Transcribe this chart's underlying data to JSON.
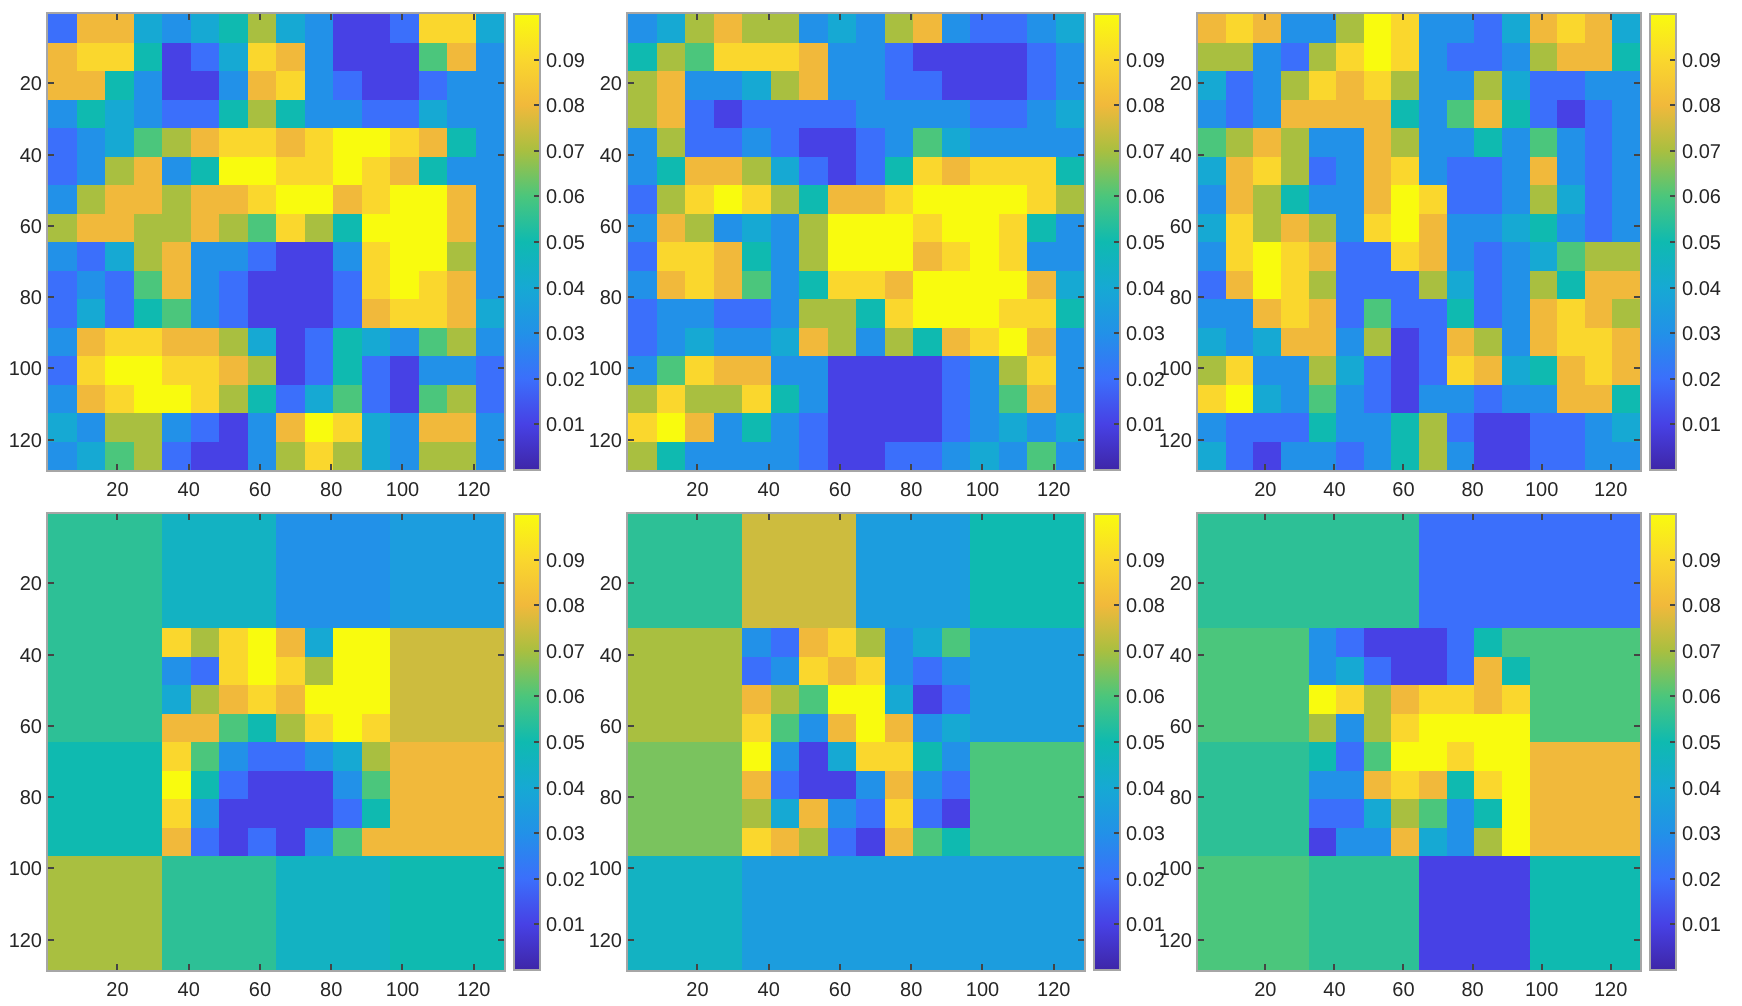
{
  "chart_data": [
    {
      "type": "heatmap",
      "clim": [
        0,
        0.1
      ],
      "cticks": [
        0.01,
        0.02,
        0.03,
        0.04,
        0.05,
        0.06,
        0.07,
        0.08,
        0.09
      ],
      "xlim": [
        0.5,
        128.5
      ],
      "ylim": [
        128.5,
        0.5
      ],
      "xticks": [
        20,
        40,
        60,
        80,
        100,
        120
      ],
      "yticks": [
        20,
        40,
        60,
        80,
        100,
        120
      ],
      "cells": [
        [
          0.02,
          0.08,
          0.08,
          0.04,
          0.03,
          0.04,
          0.05,
          0.07,
          0.04,
          0.03,
          0.01,
          0.01,
          0.02,
          0.09,
          0.09,
          0.04
        ],
        [
          0.08,
          0.09,
          0.09,
          0.05,
          0.01,
          0.02,
          0.04,
          0.09,
          0.08,
          0.03,
          0.01,
          0.01,
          0.01,
          0.06,
          0.08,
          0.03
        ],
        [
          0.08,
          0.08,
          0.05,
          0.03,
          0.01,
          0.01,
          0.03,
          0.08,
          0.09,
          0.03,
          0.02,
          0.01,
          0.01,
          0.02,
          0.03,
          0.03
        ],
        [
          0.03,
          0.05,
          0.04,
          0.03,
          0.02,
          0.02,
          0.05,
          0.07,
          0.05,
          0.03,
          0.03,
          0.02,
          0.02,
          0.04,
          0.03,
          0.03
        ],
        [
          0.02,
          0.03,
          0.04,
          0.06,
          0.07,
          0.08,
          0.09,
          0.09,
          0.08,
          0.09,
          0.1,
          0.1,
          0.09,
          0.08,
          0.05,
          0.03
        ],
        [
          0.02,
          0.03,
          0.07,
          0.08,
          0.03,
          0.05,
          0.1,
          0.1,
          0.09,
          0.09,
          0.1,
          0.09,
          0.08,
          0.05,
          0.03,
          0.03
        ],
        [
          0.03,
          0.07,
          0.08,
          0.08,
          0.07,
          0.08,
          0.08,
          0.09,
          0.1,
          0.1,
          0.08,
          0.09,
          0.1,
          0.1,
          0.08,
          0.03
        ],
        [
          0.07,
          0.08,
          0.08,
          0.07,
          0.07,
          0.08,
          0.07,
          0.06,
          0.09,
          0.07,
          0.05,
          0.1,
          0.1,
          0.1,
          0.08,
          0.03
        ],
        [
          0.03,
          0.02,
          0.04,
          0.07,
          0.08,
          0.03,
          0.03,
          0.02,
          0.01,
          0.01,
          0.03,
          0.09,
          0.1,
          0.1,
          0.07,
          0.03
        ],
        [
          0.02,
          0.03,
          0.02,
          0.06,
          0.08,
          0.03,
          0.02,
          0.01,
          0.01,
          0.01,
          0.02,
          0.09,
          0.1,
          0.09,
          0.08,
          0.03
        ],
        [
          0.02,
          0.04,
          0.02,
          0.05,
          0.06,
          0.03,
          0.02,
          0.01,
          0.01,
          0.01,
          0.02,
          0.08,
          0.09,
          0.09,
          0.08,
          0.04
        ],
        [
          0.03,
          0.08,
          0.09,
          0.09,
          0.08,
          0.08,
          0.07,
          0.04,
          0.01,
          0.02,
          0.05,
          0.04,
          0.03,
          0.06,
          0.07,
          0.03
        ],
        [
          0.02,
          0.09,
          0.1,
          0.1,
          0.09,
          0.09,
          0.08,
          0.07,
          0.01,
          0.02,
          0.05,
          0.02,
          0.01,
          0.03,
          0.03,
          0.02
        ],
        [
          0.03,
          0.08,
          0.09,
          0.1,
          0.1,
          0.09,
          0.07,
          0.05,
          0.02,
          0.04,
          0.06,
          0.02,
          0.01,
          0.06,
          0.07,
          0.02
        ],
        [
          0.04,
          0.03,
          0.07,
          0.07,
          0.03,
          0.02,
          0.01,
          0.03,
          0.08,
          0.1,
          0.09,
          0.04,
          0.03,
          0.08,
          0.08,
          0.03
        ],
        [
          0.03,
          0.04,
          0.06,
          0.07,
          0.02,
          0.01,
          0.01,
          0.03,
          0.07,
          0.09,
          0.07,
          0.04,
          0.03,
          0.07,
          0.07,
          0.03
        ]
      ]
    },
    {
      "type": "heatmap",
      "clim": [
        0,
        0.1
      ],
      "cticks": [
        0.01,
        0.02,
        0.03,
        0.04,
        0.05,
        0.06,
        0.07,
        0.08,
        0.09
      ],
      "xlim": [
        0.5,
        128.5
      ],
      "ylim": [
        128.5,
        0.5
      ],
      "xticks": [
        20,
        40,
        60,
        80,
        100,
        120
      ],
      "yticks": [
        20,
        40,
        60,
        80,
        100,
        120
      ],
      "cells": [
        [
          0.03,
          0.04,
          0.07,
          0.08,
          0.07,
          0.07,
          0.03,
          0.04,
          0.03,
          0.07,
          0.08,
          0.03,
          0.02,
          0.02,
          0.03,
          0.04
        ],
        [
          0.05,
          0.07,
          0.06,
          0.09,
          0.09,
          0.09,
          0.08,
          0.03,
          0.03,
          0.02,
          0.01,
          0.01,
          0.01,
          0.01,
          0.02,
          0.03
        ],
        [
          0.07,
          0.08,
          0.03,
          0.03,
          0.04,
          0.07,
          0.08,
          0.03,
          0.03,
          0.02,
          0.02,
          0.01,
          0.01,
          0.01,
          0.02,
          0.03
        ],
        [
          0.07,
          0.08,
          0.02,
          0.01,
          0.02,
          0.02,
          0.02,
          0.02,
          0.03,
          0.03,
          0.03,
          0.03,
          0.02,
          0.02,
          0.03,
          0.04
        ],
        [
          0.03,
          0.07,
          0.02,
          0.02,
          0.03,
          0.02,
          0.01,
          0.01,
          0.02,
          0.03,
          0.06,
          0.04,
          0.03,
          0.03,
          0.03,
          0.03
        ],
        [
          0.03,
          0.05,
          0.08,
          0.08,
          0.07,
          0.04,
          0.02,
          0.01,
          0.02,
          0.05,
          0.09,
          0.08,
          0.09,
          0.09,
          0.09,
          0.05
        ],
        [
          0.02,
          0.07,
          0.09,
          0.1,
          0.09,
          0.07,
          0.05,
          0.08,
          0.08,
          0.09,
          0.1,
          0.1,
          0.1,
          0.1,
          0.09,
          0.07
        ],
        [
          0.03,
          0.08,
          0.07,
          0.03,
          0.04,
          0.03,
          0.07,
          0.1,
          0.1,
          0.1,
          0.09,
          0.1,
          0.1,
          0.09,
          0.05,
          0.03
        ],
        [
          0.02,
          0.09,
          0.09,
          0.08,
          0.05,
          0.03,
          0.07,
          0.1,
          0.1,
          0.1,
          0.08,
          0.09,
          0.1,
          0.09,
          0.03,
          0.03
        ],
        [
          0.03,
          0.08,
          0.09,
          0.08,
          0.06,
          0.03,
          0.05,
          0.09,
          0.09,
          0.08,
          0.1,
          0.1,
          0.1,
          0.1,
          0.08,
          0.04
        ],
        [
          0.02,
          0.03,
          0.03,
          0.02,
          0.02,
          0.03,
          0.07,
          0.07,
          0.05,
          0.09,
          0.1,
          0.1,
          0.1,
          0.09,
          0.09,
          0.05
        ],
        [
          0.02,
          0.03,
          0.04,
          0.03,
          0.03,
          0.04,
          0.08,
          0.07,
          0.03,
          0.07,
          0.05,
          0.08,
          0.09,
          0.1,
          0.08,
          0.03
        ],
        [
          0.03,
          0.06,
          0.09,
          0.08,
          0.08,
          0.03,
          0.03,
          0.01,
          0.01,
          0.01,
          0.01,
          0.02,
          0.03,
          0.07,
          0.09,
          0.03
        ],
        [
          0.07,
          0.09,
          0.07,
          0.07,
          0.09,
          0.05,
          0.03,
          0.01,
          0.01,
          0.01,
          0.01,
          0.02,
          0.03,
          0.06,
          0.08,
          0.03
        ],
        [
          0.09,
          0.1,
          0.08,
          0.03,
          0.05,
          0.03,
          0.02,
          0.01,
          0.01,
          0.01,
          0.01,
          0.02,
          0.03,
          0.04,
          0.03,
          0.04
        ],
        [
          0.07,
          0.05,
          0.03,
          0.03,
          0.03,
          0.03,
          0.02,
          0.01,
          0.01,
          0.02,
          0.02,
          0.03,
          0.04,
          0.03,
          0.06,
          0.03
        ]
      ]
    },
    {
      "type": "heatmap",
      "clim": [
        0,
        0.1
      ],
      "cticks": [
        0.01,
        0.02,
        0.03,
        0.04,
        0.05,
        0.06,
        0.07,
        0.08,
        0.09
      ],
      "xlim": [
        0.5,
        128.5
      ],
      "ylim": [
        128.5,
        0.5
      ],
      "xticks": [
        20,
        40,
        60,
        80,
        100,
        120
      ],
      "yticks": [
        20,
        40,
        60,
        80,
        100,
        120
      ],
      "cells": [
        [
          0.08,
          0.09,
          0.08,
          0.03,
          0.03,
          0.07,
          0.1,
          0.09,
          0.03,
          0.03,
          0.02,
          0.04,
          0.08,
          0.09,
          0.08,
          0.04
        ],
        [
          0.07,
          0.07,
          0.03,
          0.02,
          0.07,
          0.09,
          0.1,
          0.09,
          0.03,
          0.02,
          0.02,
          0.03,
          0.07,
          0.08,
          0.08,
          0.05
        ],
        [
          0.04,
          0.02,
          0.03,
          0.07,
          0.09,
          0.08,
          0.09,
          0.07,
          0.03,
          0.03,
          0.07,
          0.04,
          0.02,
          0.02,
          0.03,
          0.03
        ],
        [
          0.03,
          0.02,
          0.03,
          0.08,
          0.08,
          0.08,
          0.08,
          0.05,
          0.03,
          0.06,
          0.08,
          0.05,
          0.02,
          0.01,
          0.02,
          0.03
        ],
        [
          0.06,
          0.07,
          0.08,
          0.07,
          0.03,
          0.03,
          0.08,
          0.07,
          0.03,
          0.03,
          0.05,
          0.03,
          0.06,
          0.03,
          0.02,
          0.03
        ],
        [
          0.04,
          0.08,
          0.09,
          0.07,
          0.02,
          0.03,
          0.08,
          0.09,
          0.03,
          0.02,
          0.02,
          0.03,
          0.08,
          0.03,
          0.02,
          0.03
        ],
        [
          0.03,
          0.08,
          0.07,
          0.05,
          0.03,
          0.03,
          0.08,
          0.1,
          0.09,
          0.02,
          0.02,
          0.03,
          0.07,
          0.04,
          0.02,
          0.03
        ],
        [
          0.04,
          0.09,
          0.07,
          0.08,
          0.07,
          0.03,
          0.09,
          0.1,
          0.08,
          0.03,
          0.03,
          0.04,
          0.05,
          0.03,
          0.02,
          0.03
        ],
        [
          0.03,
          0.09,
          0.1,
          0.09,
          0.08,
          0.02,
          0.02,
          0.09,
          0.08,
          0.03,
          0.02,
          0.03,
          0.04,
          0.06,
          0.07,
          0.07
        ],
        [
          0.02,
          0.08,
          0.1,
          0.09,
          0.07,
          0.02,
          0.02,
          0.02,
          0.07,
          0.04,
          0.02,
          0.03,
          0.07,
          0.05,
          0.08,
          0.08
        ],
        [
          0.03,
          0.03,
          0.08,
          0.09,
          0.08,
          0.02,
          0.06,
          0.02,
          0.02,
          0.05,
          0.02,
          0.03,
          0.08,
          0.09,
          0.08,
          0.07
        ],
        [
          0.04,
          0.03,
          0.04,
          0.08,
          0.08,
          0.03,
          0.07,
          0.01,
          0.02,
          0.08,
          0.07,
          0.03,
          0.08,
          0.09,
          0.09,
          0.08
        ],
        [
          0.07,
          0.09,
          0.03,
          0.03,
          0.07,
          0.04,
          0.02,
          0.01,
          0.02,
          0.09,
          0.08,
          0.04,
          0.05,
          0.08,
          0.09,
          0.08
        ],
        [
          0.09,
          0.1,
          0.04,
          0.03,
          0.06,
          0.03,
          0.02,
          0.01,
          0.03,
          0.03,
          0.02,
          0.03,
          0.03,
          0.08,
          0.08,
          0.05
        ],
        [
          0.03,
          0.02,
          0.02,
          0.02,
          0.05,
          0.03,
          0.03,
          0.05,
          0.07,
          0.02,
          0.01,
          0.01,
          0.02,
          0.02,
          0.03,
          0.04
        ],
        [
          0.04,
          0.02,
          0.01,
          0.03,
          0.03,
          0.02,
          0.03,
          0.05,
          0.07,
          0.03,
          0.01,
          0.01,
          0.02,
          0.02,
          0.03,
          0.03
        ]
      ]
    },
    {
      "type": "heatmap",
      "clim": [
        0,
        0.1
      ],
      "cticks": [
        0.01,
        0.02,
        0.03,
        0.04,
        0.05,
        0.06,
        0.07,
        0.08,
        0.09
      ],
      "xlim": [
        0.5,
        128.5
      ],
      "ylim": [
        128.5,
        0.5
      ],
      "xticks": [
        20,
        40,
        60,
        80,
        100,
        120
      ],
      "yticks": [
        20,
        40,
        60,
        80,
        100,
        120
      ],
      "cells": [
        [
          0.055,
          0.055,
          0.055,
          0.055,
          0.045,
          0.045,
          0.045,
          0.045,
          0.03,
          0.03,
          0.03,
          0.03,
          0.035,
          0.035,
          0.035,
          0.035
        ],
        [
          0.055,
          0.055,
          0.055,
          0.055,
          0.045,
          0.045,
          0.045,
          0.045,
          0.03,
          0.03,
          0.03,
          0.03,
          0.035,
          0.035,
          0.035,
          0.035
        ],
        [
          0.055,
          0.055,
          0.055,
          0.055,
          0.045,
          0.045,
          0.045,
          0.045,
          0.03,
          0.03,
          0.03,
          0.03,
          0.035,
          0.035,
          0.035,
          0.035
        ],
        [
          0.055,
          0.055,
          0.055,
          0.055,
          0.045,
          0.045,
          0.045,
          0.045,
          0.03,
          0.03,
          0.03,
          0.03,
          0.035,
          0.035,
          0.035,
          0.035
        ],
        [
          0.055,
          0.055,
          0.055,
          0.055,
          0.09,
          0.07,
          0.09,
          0.1,
          0.08,
          0.04,
          0.1,
          0.1,
          0.075,
          0.075,
          0.075,
          0.075
        ],
        [
          0.055,
          0.055,
          0.055,
          0.055,
          0.03,
          0.02,
          0.09,
          0.1,
          0.09,
          0.07,
          0.1,
          0.1,
          0.075,
          0.075,
          0.075,
          0.075
        ],
        [
          0.055,
          0.055,
          0.055,
          0.055,
          0.04,
          0.07,
          0.08,
          0.09,
          0.08,
          0.1,
          0.1,
          0.1,
          0.075,
          0.075,
          0.075,
          0.075
        ],
        [
          0.055,
          0.055,
          0.055,
          0.055,
          0.08,
          0.08,
          0.06,
          0.05,
          0.07,
          0.09,
          0.1,
          0.09,
          0.075,
          0.075,
          0.075,
          0.075
        ],
        [
          0.05,
          0.05,
          0.05,
          0.05,
          0.09,
          0.06,
          0.03,
          0.02,
          0.02,
          0.03,
          0.04,
          0.07,
          0.08,
          0.08,
          0.08,
          0.08
        ],
        [
          0.05,
          0.05,
          0.05,
          0.05,
          0.1,
          0.05,
          0.02,
          0.01,
          0.01,
          0.01,
          0.03,
          0.06,
          0.08,
          0.08,
          0.08,
          0.08
        ],
        [
          0.05,
          0.05,
          0.05,
          0.05,
          0.09,
          0.03,
          0.01,
          0.01,
          0.01,
          0.01,
          0.02,
          0.05,
          0.08,
          0.08,
          0.08,
          0.08
        ],
        [
          0.05,
          0.05,
          0.05,
          0.05,
          0.08,
          0.02,
          0.01,
          0.02,
          0.01,
          0.03,
          0.06,
          0.08,
          0.08,
          0.08,
          0.08,
          0.08
        ],
        [
          0.07,
          0.07,
          0.07,
          0.07,
          0.055,
          0.055,
          0.055,
          0.055,
          0.045,
          0.045,
          0.045,
          0.045,
          0.05,
          0.05,
          0.05,
          0.05
        ],
        [
          0.07,
          0.07,
          0.07,
          0.07,
          0.055,
          0.055,
          0.055,
          0.055,
          0.045,
          0.045,
          0.045,
          0.045,
          0.05,
          0.05,
          0.05,
          0.05
        ],
        [
          0.07,
          0.07,
          0.07,
          0.07,
          0.055,
          0.055,
          0.055,
          0.055,
          0.045,
          0.045,
          0.045,
          0.045,
          0.05,
          0.05,
          0.05,
          0.05
        ],
        [
          0.07,
          0.07,
          0.07,
          0.07,
          0.055,
          0.055,
          0.055,
          0.055,
          0.045,
          0.045,
          0.045,
          0.045,
          0.05,
          0.05,
          0.05,
          0.05
        ]
      ]
    },
    {
      "type": "heatmap",
      "clim": [
        0,
        0.1
      ],
      "cticks": [
        0.01,
        0.02,
        0.03,
        0.04,
        0.05,
        0.06,
        0.07,
        0.08,
        0.09
      ],
      "xlim": [
        0.5,
        128.5
      ],
      "ylim": [
        128.5,
        0.5
      ],
      "xticks": [
        20,
        40,
        60,
        80,
        100,
        120
      ],
      "yticks": [
        20,
        40,
        60,
        80,
        100,
        120
      ],
      "cells": [
        [
          0.055,
          0.055,
          0.055,
          0.055,
          0.075,
          0.075,
          0.075,
          0.075,
          0.035,
          0.035,
          0.035,
          0.035,
          0.05,
          0.05,
          0.05,
          0.05
        ],
        [
          0.055,
          0.055,
          0.055,
          0.055,
          0.075,
          0.075,
          0.075,
          0.075,
          0.035,
          0.035,
          0.035,
          0.035,
          0.05,
          0.05,
          0.05,
          0.05
        ],
        [
          0.055,
          0.055,
          0.055,
          0.055,
          0.075,
          0.075,
          0.075,
          0.075,
          0.035,
          0.035,
          0.035,
          0.035,
          0.05,
          0.05,
          0.05,
          0.05
        ],
        [
          0.055,
          0.055,
          0.055,
          0.055,
          0.075,
          0.075,
          0.075,
          0.075,
          0.035,
          0.035,
          0.035,
          0.035,
          0.05,
          0.05,
          0.05,
          0.05
        ],
        [
          0.07,
          0.07,
          0.07,
          0.07,
          0.03,
          0.02,
          0.08,
          0.09,
          0.07,
          0.03,
          0.04,
          0.06,
          0.035,
          0.035,
          0.035,
          0.035
        ],
        [
          0.07,
          0.07,
          0.07,
          0.07,
          0.02,
          0.03,
          0.09,
          0.08,
          0.09,
          0.03,
          0.02,
          0.03,
          0.035,
          0.035,
          0.035,
          0.035
        ],
        [
          0.07,
          0.07,
          0.07,
          0.07,
          0.08,
          0.07,
          0.06,
          0.1,
          0.1,
          0.04,
          0.01,
          0.02,
          0.035,
          0.035,
          0.035,
          0.035
        ],
        [
          0.07,
          0.07,
          0.07,
          0.07,
          0.09,
          0.06,
          0.03,
          0.08,
          0.1,
          0.08,
          0.03,
          0.04,
          0.035,
          0.035,
          0.035,
          0.035
        ],
        [
          0.065,
          0.065,
          0.065,
          0.065,
          0.1,
          0.03,
          0.01,
          0.04,
          0.09,
          0.09,
          0.05,
          0.03,
          0.06,
          0.06,
          0.06,
          0.06
        ],
        [
          0.065,
          0.065,
          0.065,
          0.065,
          0.08,
          0.02,
          0.01,
          0.01,
          0.03,
          0.08,
          0.03,
          0.02,
          0.06,
          0.06,
          0.06,
          0.06
        ],
        [
          0.065,
          0.065,
          0.065,
          0.065,
          0.07,
          0.04,
          0.08,
          0.03,
          0.02,
          0.09,
          0.02,
          0.01,
          0.06,
          0.06,
          0.06,
          0.06
        ],
        [
          0.065,
          0.065,
          0.065,
          0.065,
          0.09,
          0.08,
          0.07,
          0.02,
          0.01,
          0.08,
          0.06,
          0.05,
          0.06,
          0.06,
          0.06,
          0.06
        ],
        [
          0.045,
          0.045,
          0.045,
          0.045,
          0.035,
          0.035,
          0.035,
          0.035,
          0.035,
          0.035,
          0.035,
          0.035,
          0.035,
          0.035,
          0.035,
          0.035
        ],
        [
          0.045,
          0.045,
          0.045,
          0.045,
          0.035,
          0.035,
          0.035,
          0.035,
          0.035,
          0.035,
          0.035,
          0.035,
          0.035,
          0.035,
          0.035,
          0.035
        ],
        [
          0.045,
          0.045,
          0.045,
          0.045,
          0.035,
          0.035,
          0.035,
          0.035,
          0.035,
          0.035,
          0.035,
          0.035,
          0.035,
          0.035,
          0.035,
          0.035
        ],
        [
          0.045,
          0.045,
          0.045,
          0.045,
          0.035,
          0.035,
          0.035,
          0.035,
          0.035,
          0.035,
          0.035,
          0.035,
          0.035,
          0.035,
          0.035,
          0.035
        ]
      ]
    },
    {
      "type": "heatmap",
      "clim": [
        0,
        0.1
      ],
      "cticks": [
        0.01,
        0.02,
        0.03,
        0.04,
        0.05,
        0.06,
        0.07,
        0.08,
        0.09
      ],
      "xlim": [
        0.5,
        128.5
      ],
      "ylim": [
        128.5,
        0.5
      ],
      "xticks": [
        20,
        40,
        60,
        80,
        100,
        120
      ],
      "yticks": [
        20,
        40,
        60,
        80,
        100,
        120
      ],
      "cells": [
        [
          0.055,
          0.055,
          0.055,
          0.055,
          0.055,
          0.055,
          0.055,
          0.055,
          0.02,
          0.02,
          0.02,
          0.02,
          0.02,
          0.02,
          0.02,
          0.02
        ],
        [
          0.055,
          0.055,
          0.055,
          0.055,
          0.055,
          0.055,
          0.055,
          0.055,
          0.02,
          0.02,
          0.02,
          0.02,
          0.02,
          0.02,
          0.02,
          0.02
        ],
        [
          0.055,
          0.055,
          0.055,
          0.055,
          0.055,
          0.055,
          0.055,
          0.055,
          0.02,
          0.02,
          0.02,
          0.02,
          0.02,
          0.02,
          0.02,
          0.02
        ],
        [
          0.055,
          0.055,
          0.055,
          0.055,
          0.055,
          0.055,
          0.055,
          0.055,
          0.02,
          0.02,
          0.02,
          0.02,
          0.02,
          0.02,
          0.02,
          0.02
        ],
        [
          0.06,
          0.06,
          0.06,
          0.06,
          0.03,
          0.02,
          0.01,
          0.01,
          0.01,
          0.02,
          0.05,
          0.06,
          0.06,
          0.06,
          0.06,
          0.06
        ],
        [
          0.06,
          0.06,
          0.06,
          0.06,
          0.03,
          0.04,
          0.02,
          0.01,
          0.01,
          0.02,
          0.08,
          0.05,
          0.06,
          0.06,
          0.06,
          0.06
        ],
        [
          0.06,
          0.06,
          0.06,
          0.06,
          0.1,
          0.09,
          0.07,
          0.08,
          0.09,
          0.09,
          0.08,
          0.09,
          0.06,
          0.06,
          0.06,
          0.06
        ],
        [
          0.06,
          0.06,
          0.06,
          0.06,
          0.07,
          0.03,
          0.07,
          0.09,
          0.1,
          0.1,
          0.1,
          0.1,
          0.06,
          0.06,
          0.06,
          0.06
        ],
        [
          0.055,
          0.055,
          0.055,
          0.055,
          0.05,
          0.02,
          0.06,
          0.1,
          0.1,
          0.09,
          0.1,
          0.1,
          0.08,
          0.08,
          0.08,
          0.08
        ],
        [
          0.055,
          0.055,
          0.055,
          0.055,
          0.03,
          0.03,
          0.08,
          0.09,
          0.08,
          0.05,
          0.09,
          0.1,
          0.08,
          0.08,
          0.08,
          0.08
        ],
        [
          0.055,
          0.055,
          0.055,
          0.055,
          0.02,
          0.02,
          0.04,
          0.07,
          0.06,
          0.03,
          0.05,
          0.1,
          0.08,
          0.08,
          0.08,
          0.08
        ],
        [
          0.055,
          0.055,
          0.055,
          0.055,
          0.01,
          0.03,
          0.03,
          0.08,
          0.04,
          0.03,
          0.07,
          0.1,
          0.08,
          0.08,
          0.08,
          0.08
        ],
        [
          0.06,
          0.06,
          0.06,
          0.06,
          0.055,
          0.055,
          0.055,
          0.055,
          0.01,
          0.01,
          0.01,
          0.01,
          0.05,
          0.05,
          0.05,
          0.05
        ],
        [
          0.06,
          0.06,
          0.06,
          0.06,
          0.055,
          0.055,
          0.055,
          0.055,
          0.01,
          0.01,
          0.01,
          0.01,
          0.05,
          0.05,
          0.05,
          0.05
        ],
        [
          0.06,
          0.06,
          0.06,
          0.06,
          0.055,
          0.055,
          0.055,
          0.055,
          0.01,
          0.01,
          0.01,
          0.01,
          0.05,
          0.05,
          0.05,
          0.05
        ],
        [
          0.06,
          0.06,
          0.06,
          0.06,
          0.055,
          0.055,
          0.055,
          0.055,
          0.01,
          0.01,
          0.01,
          0.01,
          0.05,
          0.05,
          0.05,
          0.05
        ]
      ]
    }
  ]
}
